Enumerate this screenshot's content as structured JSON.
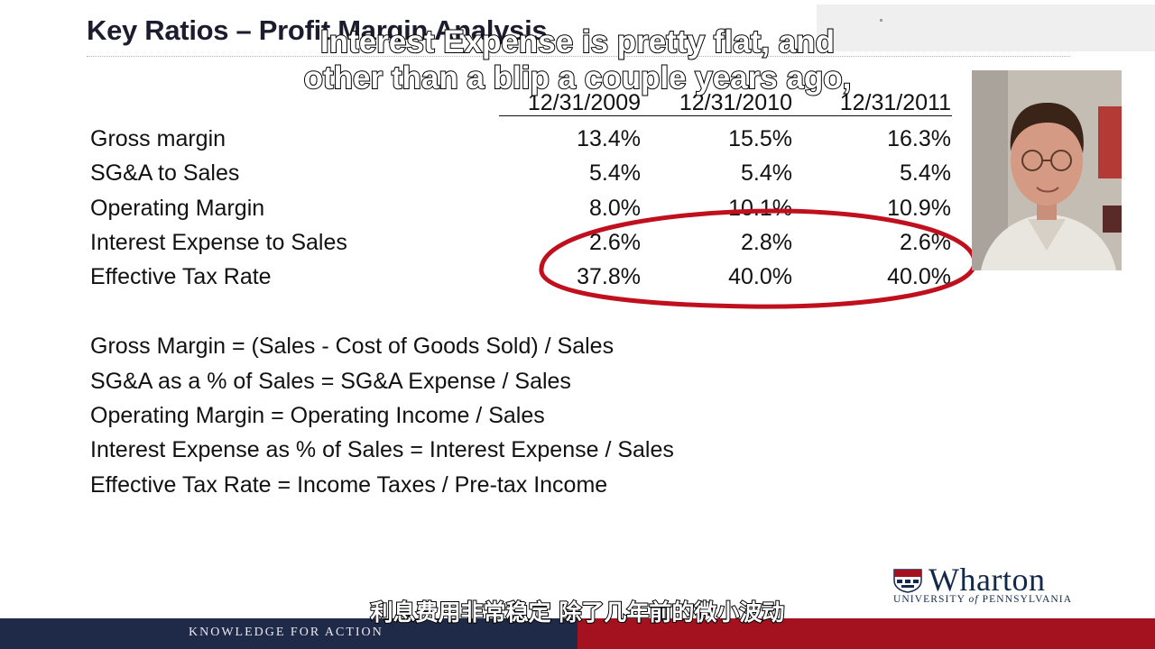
{
  "slide": {
    "title": "Key Ratios – Profit Margin Analysis",
    "columns": [
      "12/31/2009",
      "12/31/2010",
      "12/31/2011"
    ],
    "rows": [
      {
        "label": "Gross margin",
        "values": [
          "13.4%",
          "15.5%",
          "16.3%"
        ]
      },
      {
        "label": "SG&A to Sales",
        "values": [
          "5.4%",
          "5.4%",
          "5.4%"
        ]
      },
      {
        "label": "Operating Margin",
        "values": [
          "8.0%",
          "10.1%",
          "10.9%"
        ]
      },
      {
        "label": "Interest Expense to Sales",
        "values": [
          "2.6%",
          "2.8%",
          "2.6%"
        ]
      },
      {
        "label": "Effective Tax Rate",
        "values": [
          "37.8%",
          "40.0%",
          "40.0%"
        ]
      }
    ],
    "formulas": [
      "Gross Margin = (Sales - Cost of Goods Sold) / Sales",
      "SG&A as a % of Sales = SG&A Expense / Sales",
      "Operating Margin = Operating Income / Sales",
      "Interest Expense as % of Sales = Interest Expense / Sales",
      "Effective Tax Rate = Income Taxes / Pre-tax Income"
    ],
    "annotation_color": "#c0101e"
  },
  "captions": {
    "english_line1": "Interest Expense is pretty flat, and",
    "english_line2": "other than a blip a couple years ago,",
    "chinese": "利息费用非常稳定 除了几年前的微小波动"
  },
  "branding": {
    "logo_word": "Wharton",
    "logo_sub_part1": "UNIVERSITY ",
    "logo_sub_of": "of",
    "logo_sub_part2": " PENNSYLVANIA",
    "footer_tagline": "KNOWLEDGE FOR ACTION",
    "navy": "#1f2a48",
    "red": "#a5121f"
  },
  "video": {
    "icon": "presenter-webcam"
  }
}
